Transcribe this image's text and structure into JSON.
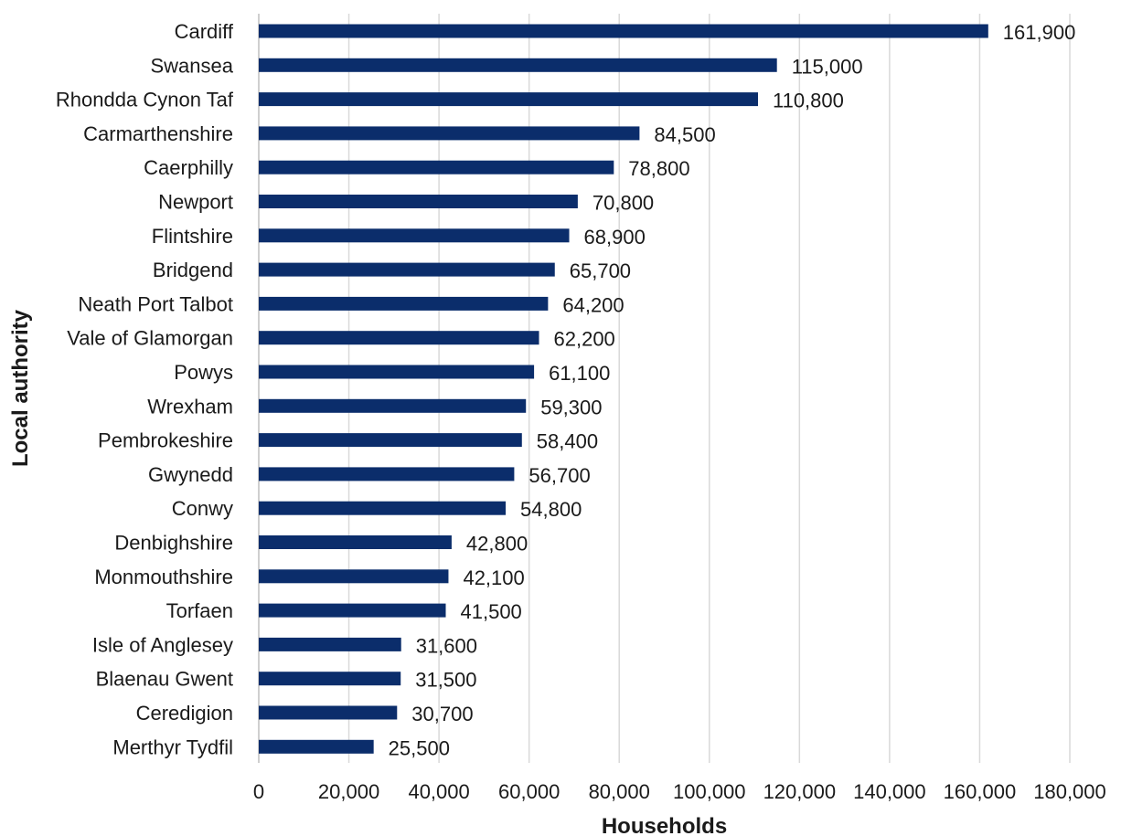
{
  "chart_data": {
    "type": "bar",
    "orientation": "horizontal",
    "xlabel": "Households",
    "ylabel": "Local authority",
    "xlim": [
      0,
      180000
    ],
    "xticks": [
      0,
      20000,
      40000,
      60000,
      80000,
      100000,
      120000,
      140000,
      160000,
      180000
    ],
    "xtick_labels": [
      "0",
      "20,000",
      "40,000",
      "60,000",
      "80,000",
      "100,000",
      "120,000",
      "140,000",
      "160,000",
      "180,000"
    ],
    "grid": "vertical",
    "bar_color": "#0b2d6b",
    "categories": [
      "Cardiff",
      "Swansea",
      "Rhondda Cynon Taf",
      "Carmarthenshire",
      "Caerphilly",
      "Newport",
      "Flintshire",
      "Bridgend",
      "Neath Port Talbot",
      "Vale of Glamorgan",
      "Powys",
      "Wrexham",
      "Pembrokeshire",
      "Gwynedd",
      "Conwy",
      "Denbighshire",
      "Monmouthshire",
      "Torfaen",
      "Isle of Anglesey",
      "Blaenau Gwent",
      "Ceredigion",
      "Merthyr Tydfil"
    ],
    "values": [
      161900,
      115000,
      110800,
      84500,
      78800,
      70800,
      68900,
      65700,
      64200,
      62200,
      61100,
      59300,
      58400,
      56700,
      54800,
      42800,
      42100,
      41500,
      31600,
      31500,
      30700,
      25500
    ],
    "value_labels": [
      "161,900",
      "115,000",
      "110,800",
      "84,500",
      "78,800",
      "70,800",
      "68,900",
      "65,700",
      "64,200",
      "62,200",
      "61,100",
      "59,300",
      "58,400",
      "56,700",
      "54,800",
      "42,800",
      "42,100",
      "41,500",
      "31,600",
      "31,500",
      "30,700",
      "25,500"
    ]
  }
}
